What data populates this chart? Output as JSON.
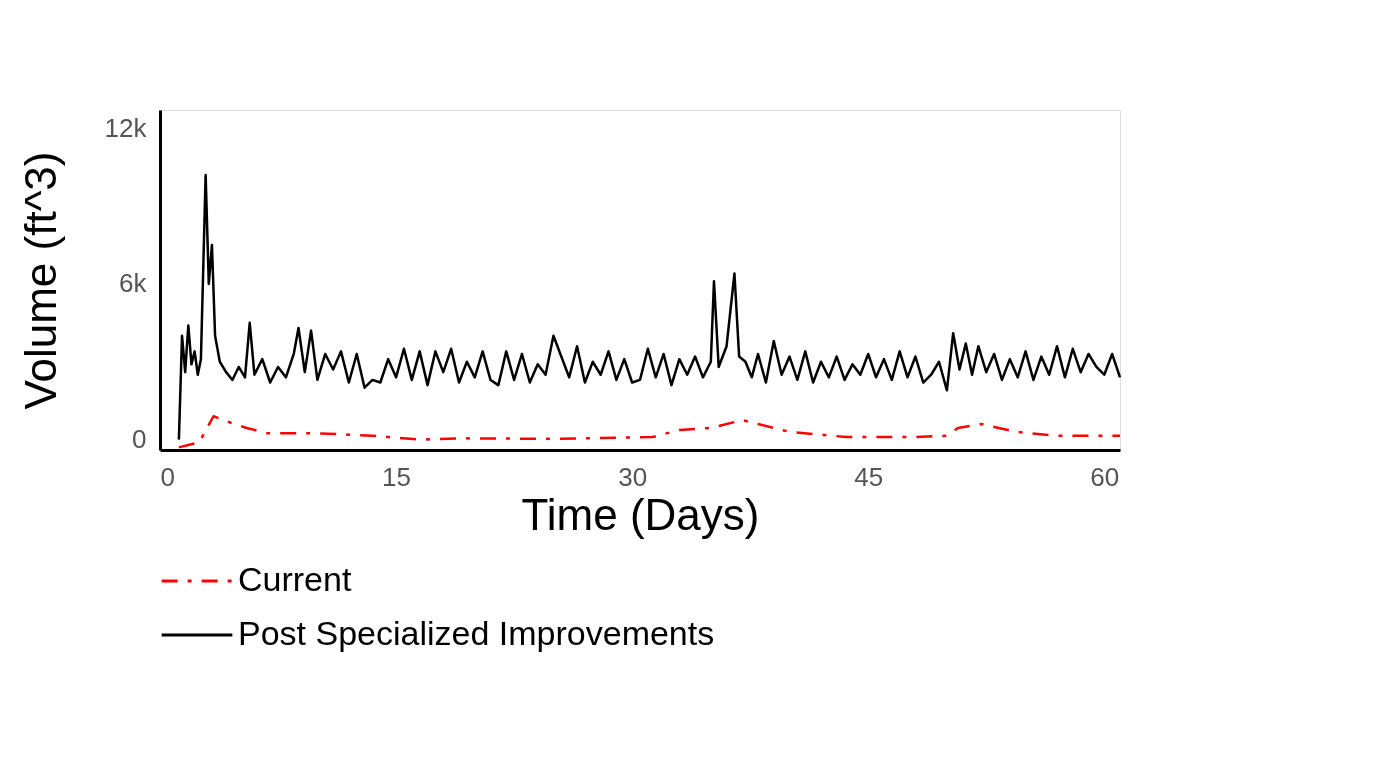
{
  "chart_data": {
    "type": "line",
    "xlabel": "Time (Days)",
    "ylabel": "Volume (ft^3)",
    "xlim": [
      0,
      61
    ],
    "xticks": [
      0,
      15,
      30,
      45,
      60
    ],
    "ylim": [
      -400,
      12700
    ],
    "yticks": [
      0,
      {
        "value": 6000,
        "label": "6k"
      },
      {
        "value": 12000,
        "label": "12k"
      }
    ],
    "grid": false,
    "legend": "bottom left",
    "marker": "none",
    "series": [
      {
        "name": "Current",
        "color": "#ff0000",
        "line_style": "dashed",
        "x": [
          1.2,
          2.5,
          3.4,
          4.5,
          5.5,
          6.8,
          9.8,
          13.5,
          16.6,
          19,
          25,
          31.3,
          33,
          35,
          37,
          38,
          40,
          43.6,
          48,
          50,
          50.7,
          52.2,
          54.4,
          57,
          61
        ],
        "values": [
          -300,
          -100,
          900,
          650,
          450,
          250,
          250,
          150,
          0,
          50,
          30,
          100,
          370,
          450,
          750,
          600,
          300,
          100,
          100,
          150,
          450,
          600,
          300,
          150,
          150
        ]
      },
      {
        "name": "Post Specialized Improvements",
        "color": "#000000",
        "line_style": "solid",
        "x": [
          1.2,
          1.4,
          1.6,
          1.8,
          2.0,
          2.2,
          2.4,
          2.6,
          2.9,
          3.1,
          3.3,
          3.5,
          3.8,
          4.2,
          4.6,
          5.0,
          5.4,
          5.7,
          6.0,
          6.5,
          7.0,
          7.5,
          8.0,
          8.5,
          8.8,
          9.2,
          9.6,
          10.0,
          10.5,
          11.0,
          11.5,
          12.0,
          12.5,
          13.0,
          13.5,
          14.0,
          14.5,
          15.0,
          15.5,
          16.0,
          16.5,
          17.0,
          17.5,
          18.0,
          18.5,
          19.0,
          19.5,
          20.0,
          20.5,
          21.0,
          21.5,
          22.0,
          22.5,
          23.0,
          23.5,
          24.0,
          24.5,
          25.0,
          25.5,
          26.0,
          26.5,
          27.0,
          27.5,
          28.0,
          28.5,
          29.0,
          29.5,
          30.0,
          30.5,
          31.0,
          31.5,
          32.0,
          32.5,
          33.0,
          33.5,
          34.0,
          34.5,
          35.0,
          35.2,
          35.5,
          36.0,
          36.5,
          36.8,
          37.2,
          37.6,
          38.0,
          38.5,
          39.0,
          39.5,
          40.0,
          40.5,
          41.0,
          41.5,
          42.0,
          42.5,
          43.0,
          43.5,
          44.0,
          44.5,
          45.0,
          45.5,
          46.0,
          46.5,
          47.0,
          47.5,
          48.0,
          48.5,
          49.0,
          49.5,
          50.0,
          50.4,
          50.8,
          51.2,
          51.6,
          52.0,
          52.5,
          53.0,
          53.5,
          54.0,
          54.5,
          55.0,
          55.5,
          56.0,
          56.5,
          57.0,
          57.5,
          58.0,
          58.5,
          59.0,
          59.5,
          60.0,
          60.5,
          61.0
        ],
        "values": [
          0,
          4000,
          2600,
          4400,
          2900,
          3400,
          2500,
          3100,
          10200,
          6000,
          7500,
          4000,
          3000,
          2600,
          2300,
          2800,
          2400,
          4500,
          2500,
          3100,
          2200,
          2800,
          2400,
          3300,
          4300,
          2600,
          4200,
          2300,
          3300,
          2700,
          3400,
          2200,
          3300,
          2000,
          2300,
          2200,
          3100,
          2400,
          3500,
          2300,
          3400,
          2100,
          3400,
          2600,
          3500,
          2200,
          3000,
          2400,
          3400,
          2300,
          2100,
          3400,
          2300,
          3300,
          2200,
          2900,
          2500,
          4000,
          3200,
          2400,
          3600,
          2200,
          3000,
          2500,
          3400,
          2300,
          3100,
          2200,
          2300,
          3500,
          2400,
          3300,
          2100,
          3100,
          2500,
          3200,
          2400,
          3000,
          6100,
          2800,
          3600,
          6400,
          3200,
          3000,
          2400,
          3300,
          2200,
          3800,
          2500,
          3200,
          2300,
          3400,
          2200,
          3000,
          2400,
          3200,
          2300,
          2900,
          2500,
          3300,
          2400,
          3100,
          2300,
          3400,
          2400,
          3200,
          2200,
          2500,
          3000,
          1900,
          4100,
          2700,
          3700,
          2500,
          3600,
          2600,
          3300,
          2300,
          3100,
          2400,
          3400,
          2300,
          3200,
          2500,
          3600,
          2400,
          3500,
          2600,
          3300,
          2800,
          2500,
          3300,
          2400
        ]
      }
    ]
  }
}
